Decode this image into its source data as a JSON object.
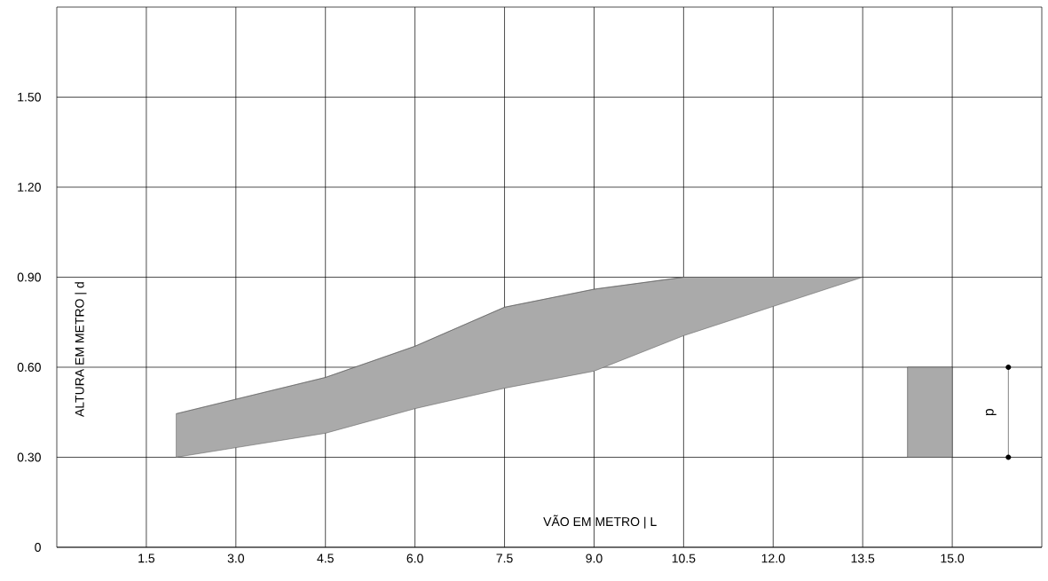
{
  "chart_data": {
    "type": "line",
    "xlabel": "VÃO EM METRO | L",
    "ylabel": "ALTURA EM METRO | d",
    "series": [
      {
        "color": "#555555",
        "x": [
          2.0,
          4.5,
          6.0,
          7.5,
          9.0,
          10.5,
          13.5
        ],
        "values": [
          0.445,
          0.566,
          0.67,
          0.8,
          0.86,
          0.9,
          0.9
        ],
        "upper": [
          0.445,
          0.566,
          0.67,
          0.8,
          0.86,
          0.9,
          0.9
        ],
        "lower": [
          0.3,
          0.38,
          0.462,
          0.53,
          0.587,
          0.705,
          0.9
        ]
      }
    ],
    "xlim": [
      0,
      16.5
    ],
    "xticks": [
      1.5,
      {
        "value": 3,
        "label": "3.0"
      },
      4.5,
      {
        "value": 6,
        "label": "6.0"
      },
      7.5,
      {
        "value": 9,
        "label": "9.0"
      },
      10.5,
      {
        "value": 12,
        "label": "12.0"
      },
      13.5,
      {
        "value": 15,
        "label": "15.0"
      }
    ],
    "ylim": [
      0,
      1.8
    ],
    "yticks": [
      0,
      {
        "value": 0.3,
        "label": "0.30"
      },
      {
        "value": 0.6,
        "label": "0.60"
      },
      {
        "value": 0.9,
        "label": "0.90"
      },
      {
        "value": 1.2,
        "label": "1.20"
      },
      {
        "value": 1.5,
        "label": "1.50"
      }
    ],
    "grid": true,
    "annotations": [
      "d"
    ]
  }
}
